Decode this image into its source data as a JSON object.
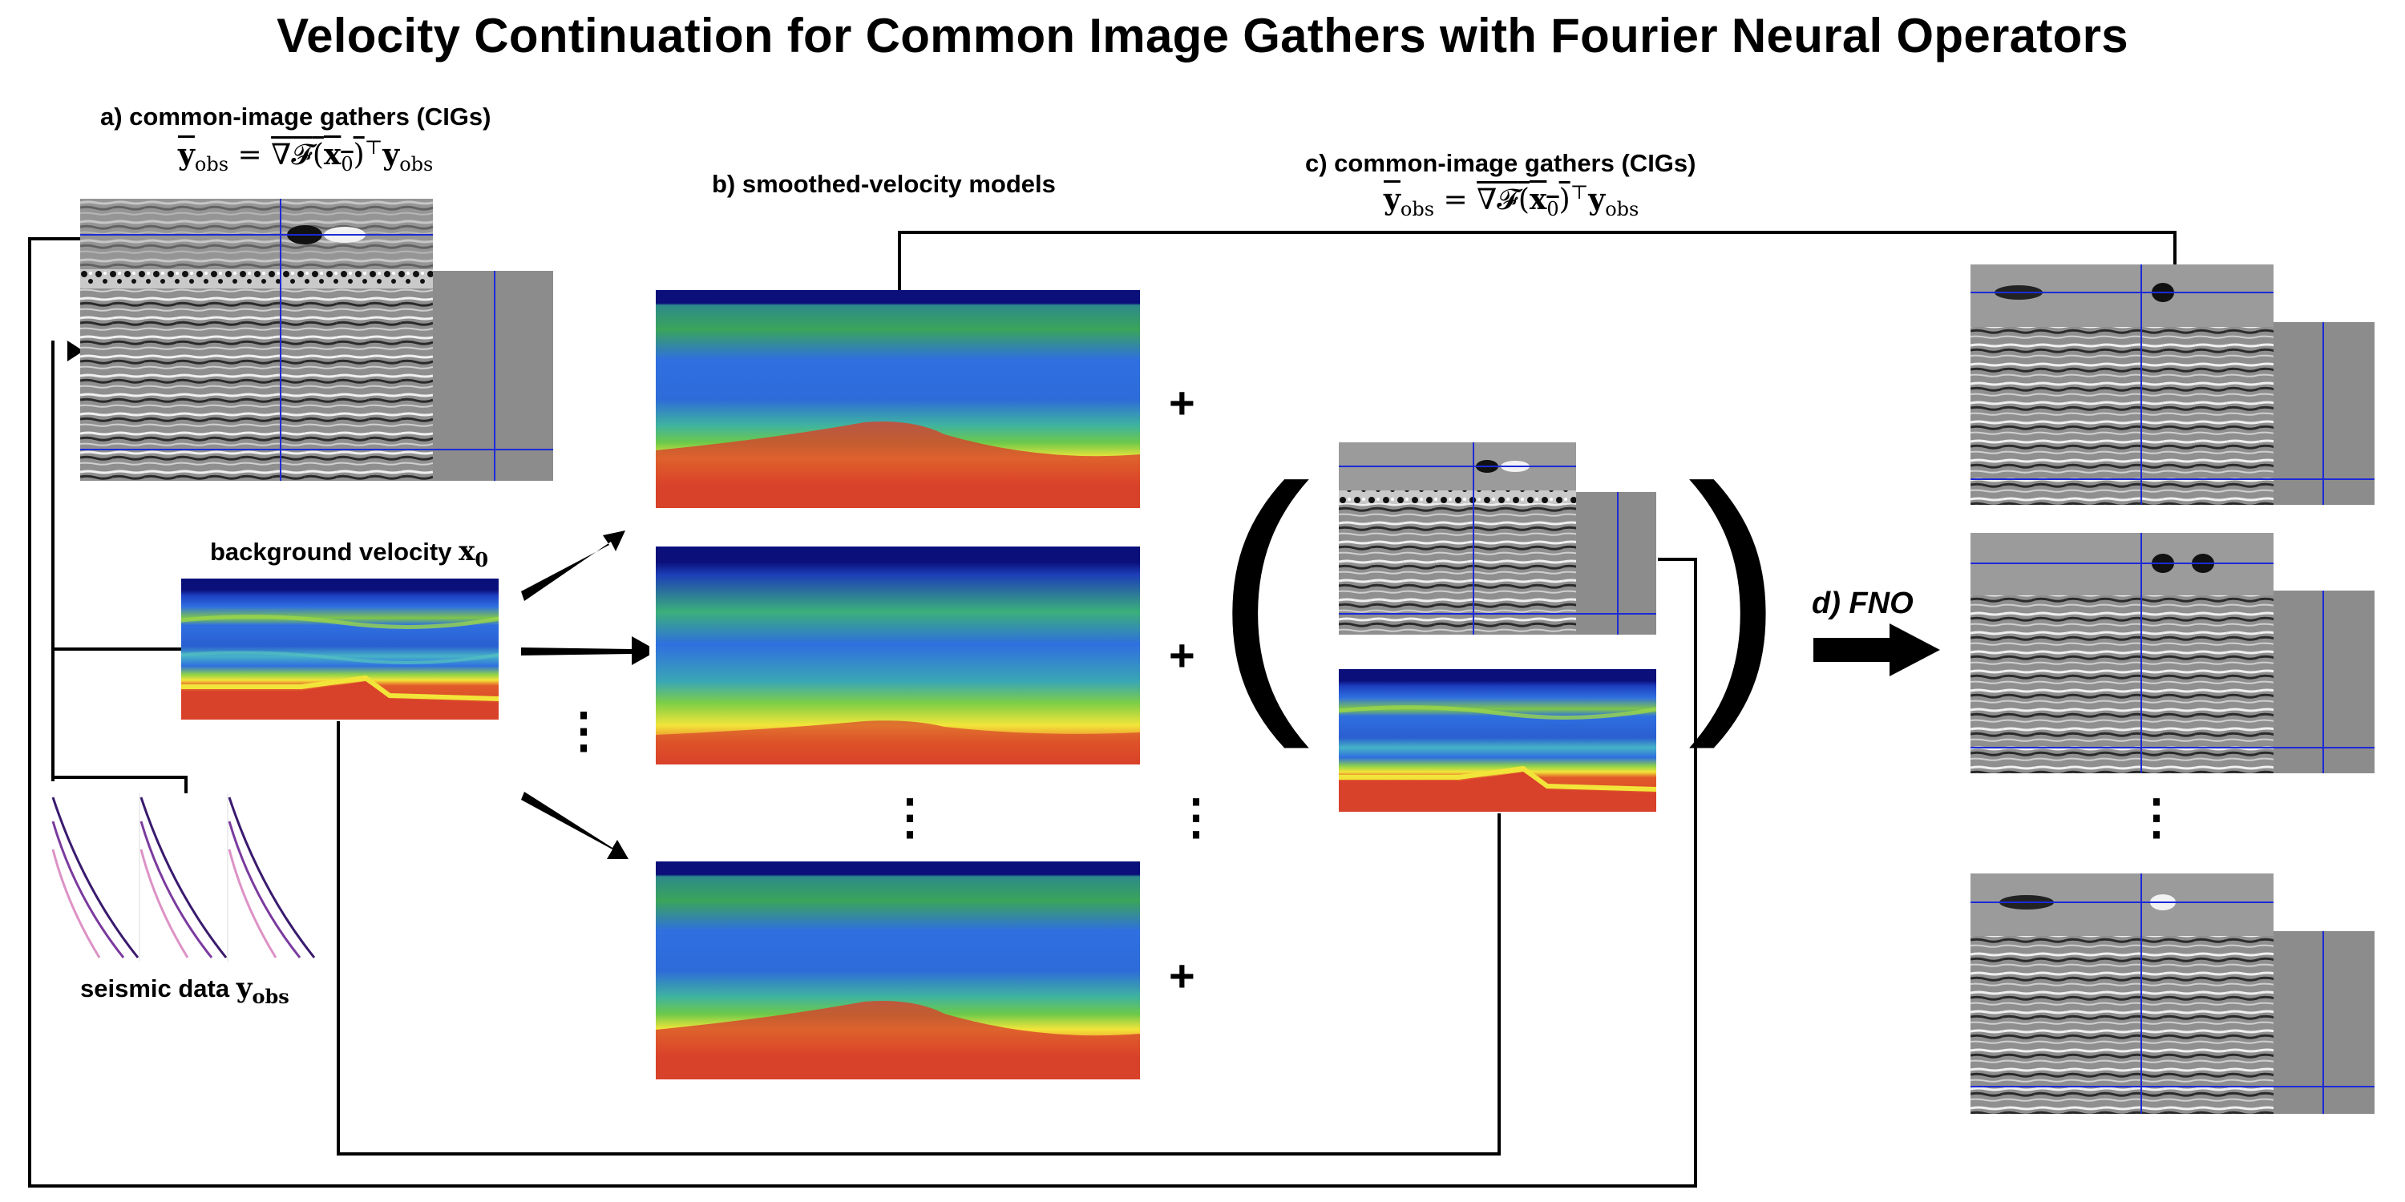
{
  "title": "Velocity Continuation for Common Image Gathers with Fourier Neural Operators",
  "panel_a": {
    "label": "a) common-image gathers (CIGs)",
    "eq_lhs_symbol": "y",
    "eq_lhs_sub": "obs",
    "eq_operator": "∇𝓕",
    "eq_arg_symbol": "x",
    "eq_arg_sub": "0",
    "eq_transpose": "⊤",
    "eq_rhs_symbol": "y",
    "eq_rhs_sub": "obs"
  },
  "background_velocity": {
    "label": "background velocity",
    "symbol": "x",
    "sub": "0"
  },
  "seismic_data": {
    "label": "seismic data",
    "symbol": "y",
    "sub": "obs"
  },
  "panel_b": {
    "label": "b) smoothed-velocity models"
  },
  "panel_c": {
    "label": "c) common-image gathers (CIGs)",
    "eq_lhs_symbol": "y",
    "eq_lhs_sub": "obs",
    "eq_operator": "∇𝓕",
    "eq_arg_symbol": "x",
    "eq_arg_sub": "0",
    "eq_transpose": "⊤",
    "eq_rhs_symbol": "y",
    "eq_rhs_sub": "obs"
  },
  "panel_d": {
    "label": "d) FNO"
  },
  "symbols": {
    "plus": "+",
    "vdots": "⋮",
    "open_paren": "(",
    "close_paren": ")"
  },
  "colors": {
    "velocity_low": "#0a0f7a",
    "velocity_mid_blue": "#2f5fd8",
    "velocity_green": "#5fc14a",
    "velocity_yellow": "#f2e53a",
    "velocity_red": "#d8412a",
    "cig_gray": "#8c8c8c",
    "crosshair": "#1d2ad6",
    "seismic_purple": "#3a1a6e"
  }
}
